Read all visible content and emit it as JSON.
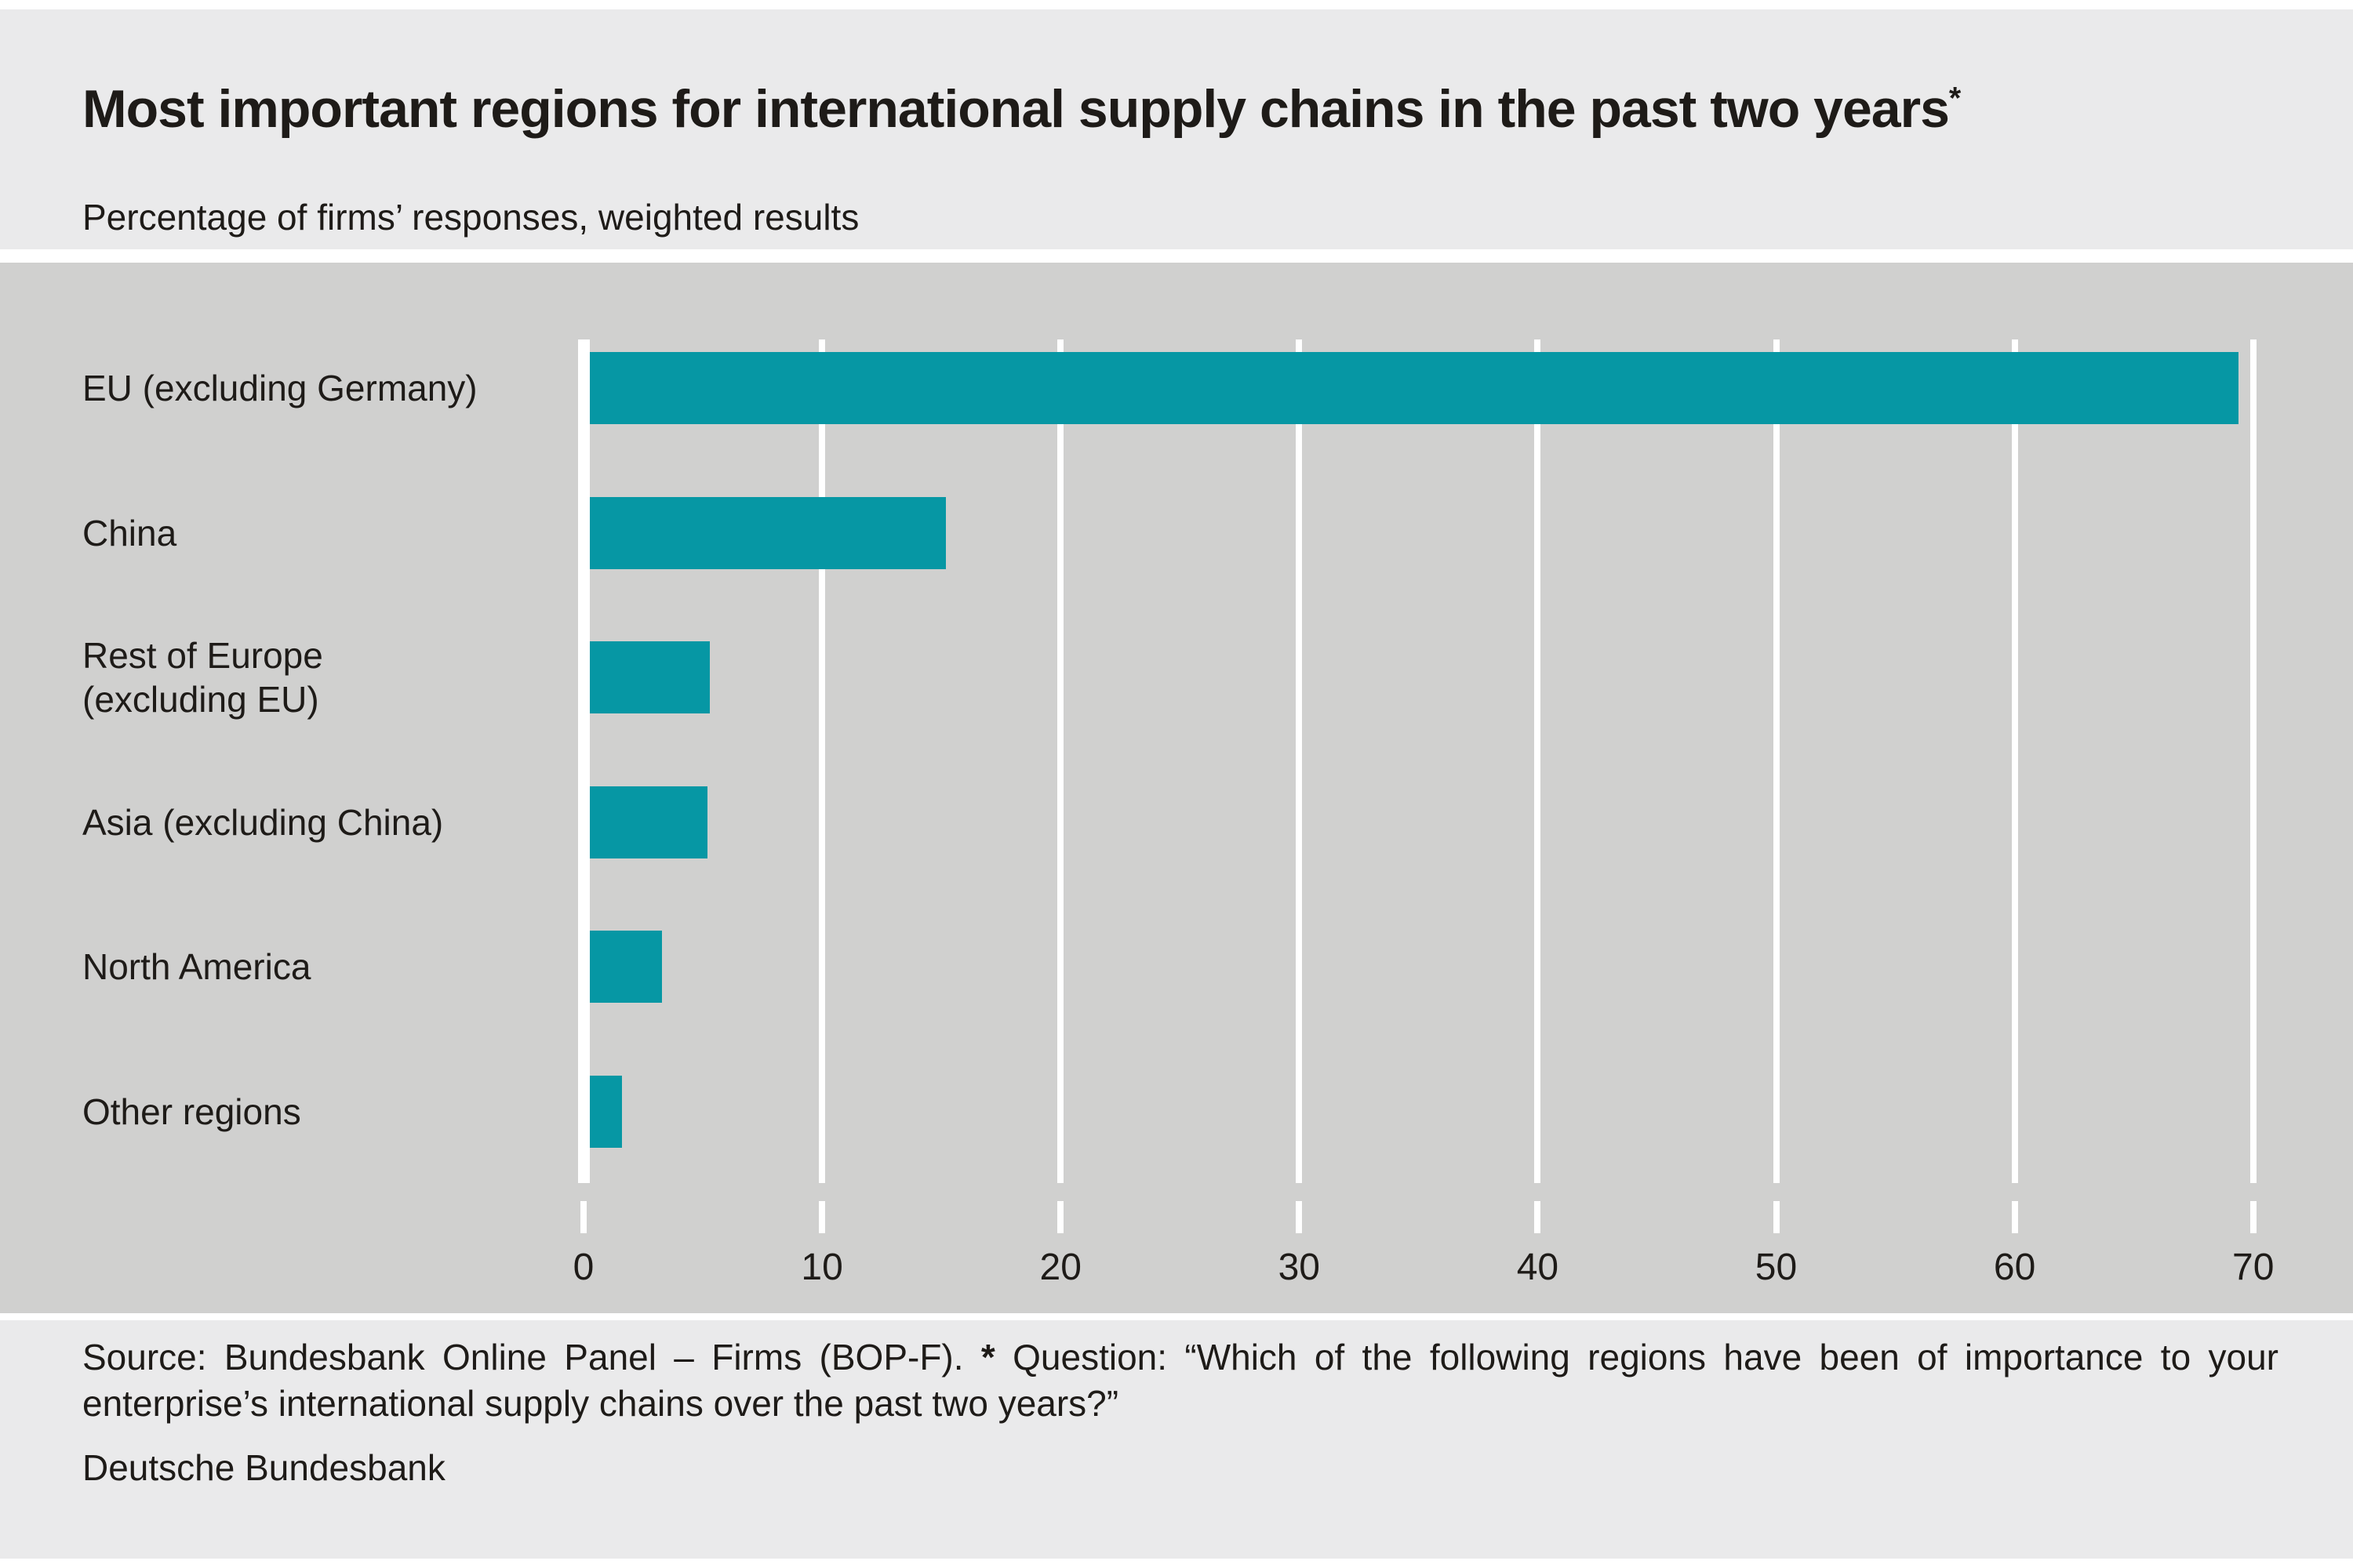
{
  "header": {
    "title": "Most important regions for international supply chains in the past two years",
    "title_asterisk": "*",
    "subtitle": "Percentage of firms’ responses, weighted results"
  },
  "chart_data": {
    "type": "bar",
    "orientation": "horizontal",
    "categories": [
      "EU (excluding Germany)",
      "China",
      "Rest of Europe\n(excluding EU)",
      "Asia (excluding China)",
      "North America",
      "Other regions"
    ],
    "values": [
      69.4,
      15.2,
      5.3,
      5.2,
      3.3,
      1.6
    ],
    "xlim": [
      0,
      70
    ],
    "xticks": [
      0,
      10,
      20,
      30,
      40,
      50,
      60,
      70
    ],
    "grid": true,
    "legend": "none",
    "xlabel": "",
    "ylabel": ""
  },
  "footer": {
    "source_prefix": "Source: Bundesbank Online Panel – Firms (BOP-F). ",
    "asterisk": "*",
    "source_suffix": " Question: “Which of the following regions have been of importance to your enterprise’s international supply chains over the past two years?”",
    "publisher": "Deutsche Bundesbank"
  },
  "colors": {
    "bar_teal": "#0697a4",
    "plot_background": "#d0d0cf",
    "panel_background": "#eaeaeb",
    "gridline_white": "#ffffff",
    "text": "#1e1b18"
  }
}
